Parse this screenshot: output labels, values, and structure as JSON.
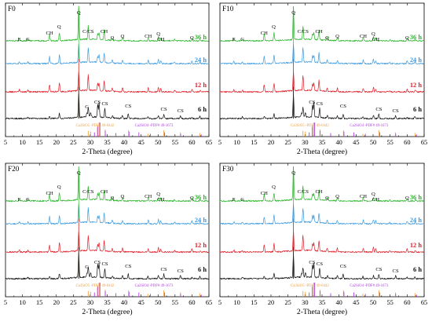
{
  "chart_data": [
    {
      "type": "line",
      "title": "F0",
      "xlabel": "2-Theta (degree)",
      "ylabel": "",
      "xlim": [
        5,
        65
      ],
      "x_ticks": [
        "5",
        "10",
        "15",
        "20",
        "25",
        "30",
        "35",
        "40",
        "45",
        "50",
        "55",
        "60",
        "65"
      ],
      "series": [
        {
          "name": "36 h",
          "color": "#2db52d"
        },
        {
          "name": "24 h",
          "color": "#3d9be0"
        },
        {
          "name": "12 h",
          "color": "#e0202a"
        },
        {
          "name": "6 h",
          "color": "#111111"
        }
      ],
      "phase_labels": [
        {
          "text": "E",
          "x": 9.1,
          "series": "36 h"
        },
        {
          "text": "G",
          "x": 11.6,
          "series": "36 h"
        },
        {
          "text": "CH",
          "x": 18.0,
          "series": "36 h"
        },
        {
          "text": "Q",
          "x": 20.8,
          "series": "36 h"
        },
        {
          "text": "Q",
          "x": 26.6,
          "series": "36 h"
        },
        {
          "text": "C/CS",
          "x": 29.4,
          "series": "36 h"
        },
        {
          "text": "CH",
          "x": 34.1,
          "series": "36 h"
        },
        {
          "text": "Q",
          "x": 36.5,
          "series": "36 h"
        },
        {
          "text": "Q",
          "x": 39.5,
          "series": "36 h"
        },
        {
          "text": "CH",
          "x": 47.1,
          "series": "36 h"
        },
        {
          "text": "Q",
          "x": 50.1,
          "series": "36 h"
        },
        {
          "text": "CH",
          "x": 50.8,
          "series": "36 h"
        },
        {
          "text": "Q",
          "x": 60.0,
          "series": "36 h"
        },
        {
          "text": "G",
          "x": 29.0,
          "series": "6 h"
        },
        {
          "text": "CS",
          "x": 32.1,
          "series": "6 h"
        },
        {
          "text": "CS",
          "x": 34.3,
          "series": "6 h"
        },
        {
          "text": "CS",
          "x": 41.2,
          "series": "6 h"
        },
        {
          "text": "CS",
          "x": 51.7,
          "series": "6 h"
        },
        {
          "text": "CS",
          "x": 56.6,
          "series": "6 h"
        }
      ],
      "reference_patterns": [
        {
          "name": "Ca3SiO5 -PDF# 49-0442",
          "color": "#f0a040",
          "peaks": [
            29.4,
            30.1,
            32.2,
            32.6,
            34.4,
            41.3,
            47.0,
            51.7,
            56.6,
            62.3
          ],
          "intensities": [
            0.4,
            0.35,
            0.8,
            1.0,
            0.5,
            0.45,
            0.2,
            0.45,
            0.3,
            0.25
          ]
        },
        {
          "name": "Ca2SiO4 -PDF# 49-1673",
          "color": "#b040e0",
          "peaks": [
            31.1,
            32.0,
            32.7,
            34.3,
            37.4,
            41.3,
            44.2,
            47.6,
            51.8,
            56.5,
            62.6
          ],
          "intensities": [
            0.3,
            0.7,
            1.0,
            0.4,
            0.25,
            0.35,
            0.3,
            0.2,
            0.3,
            0.2,
            0.15
          ]
        }
      ]
    },
    {
      "type": "line",
      "title": "F10",
      "xlabel": "2-Theta (degree)",
      "ylabel": "",
      "xlim": [
        5,
        65
      ],
      "x_ticks": [
        "5",
        "10",
        "15",
        "20",
        "25",
        "30",
        "35",
        "40",
        "45",
        "50",
        "55",
        "60",
        "65"
      ],
      "series": [
        {
          "name": "36 h",
          "color": "#2db52d"
        },
        {
          "name": "24 h",
          "color": "#3d9be0"
        },
        {
          "name": "12 h",
          "color": "#e0202a"
        },
        {
          "name": "6 h",
          "color": "#111111"
        }
      ],
      "phase_labels": [
        {
          "text": "E",
          "x": 9.1,
          "series": "36 h"
        },
        {
          "text": "G",
          "x": 11.6,
          "series": "36 h"
        },
        {
          "text": "CH",
          "x": 18.0,
          "series": "36 h"
        },
        {
          "text": "Q",
          "x": 20.8,
          "series": "36 h"
        },
        {
          "text": "Q",
          "x": 26.6,
          "series": "36 h"
        },
        {
          "text": "C/CS",
          "x": 29.4,
          "series": "36 h"
        },
        {
          "text": "CH",
          "x": 34.1,
          "series": "36 h"
        },
        {
          "text": "Q",
          "x": 36.5,
          "series": "36 h"
        },
        {
          "text": "Q",
          "x": 39.5,
          "series": "36 h"
        },
        {
          "text": "CH",
          "x": 47.1,
          "series": "36 h"
        },
        {
          "text": "Q",
          "x": 50.1,
          "series": "36 h"
        },
        {
          "text": "CH",
          "x": 50.8,
          "series": "36 h"
        },
        {
          "text": "Q",
          "x": 60.0,
          "series": "36 h"
        },
        {
          "text": "CS",
          "x": 32.1,
          "series": "6 h"
        },
        {
          "text": "CS",
          "x": 34.3,
          "series": "6 h"
        },
        {
          "text": "CS",
          "x": 41.2,
          "series": "6 h"
        },
        {
          "text": "CS",
          "x": 51.7,
          "series": "6 h"
        },
        {
          "text": "CS",
          "x": 56.6,
          "series": "6 h"
        }
      ],
      "reference_patterns": [
        {
          "name": "Ca3SiO5 -PDF# 49-0442",
          "color": "#f0a040",
          "peaks": [
            29.4,
            30.1,
            32.2,
            32.6,
            34.4,
            41.3,
            47.0,
            51.7,
            56.6,
            62.3
          ],
          "intensities": [
            0.4,
            0.35,
            0.8,
            1.0,
            0.5,
            0.45,
            0.2,
            0.45,
            0.3,
            0.25
          ]
        },
        {
          "name": "Ca2SiO4 -PDF# 49-1673",
          "color": "#b040e0",
          "peaks": [
            31.1,
            32.0,
            32.7,
            34.3,
            37.4,
            41.3,
            44.2,
            47.6,
            51.8,
            56.5,
            62.6
          ],
          "intensities": [
            0.3,
            0.7,
            1.0,
            0.4,
            0.25,
            0.35,
            0.3,
            0.2,
            0.3,
            0.2,
            0.15
          ]
        }
      ]
    },
    {
      "type": "line",
      "title": "F20",
      "xlabel": "2-Theta (degree)",
      "ylabel": "",
      "xlim": [
        5,
        65
      ],
      "x_ticks": [
        "5",
        "10",
        "15",
        "20",
        "25",
        "30",
        "35",
        "40",
        "45",
        "50",
        "55",
        "60",
        "65"
      ],
      "series": [
        {
          "name": "36 h",
          "color": "#2db52d"
        },
        {
          "name": "24 h",
          "color": "#3d9be0"
        },
        {
          "name": "12 h",
          "color": "#e0202a"
        },
        {
          "name": "6 h",
          "color": "#111111"
        }
      ],
      "phase_labels": [
        {
          "text": "E",
          "x": 9.1,
          "series": "36 h"
        },
        {
          "text": "G",
          "x": 11.6,
          "series": "36 h"
        },
        {
          "text": "CH",
          "x": 18.0,
          "series": "36 h"
        },
        {
          "text": "Q",
          "x": 20.8,
          "series": "36 h"
        },
        {
          "text": "Q",
          "x": 26.6,
          "series": "36 h"
        },
        {
          "text": "C/CS",
          "x": 29.4,
          "series": "36 h"
        },
        {
          "text": "CH",
          "x": 34.1,
          "series": "36 h"
        },
        {
          "text": "Q",
          "x": 36.5,
          "series": "36 h"
        },
        {
          "text": "Q",
          "x": 39.5,
          "series": "36 h"
        },
        {
          "text": "CH",
          "x": 47.1,
          "series": "36 h"
        },
        {
          "text": "Q",
          "x": 50.1,
          "series": "36 h"
        },
        {
          "text": "CH",
          "x": 50.8,
          "series": "36 h"
        },
        {
          "text": "Q",
          "x": 60.0,
          "series": "36 h"
        },
        {
          "text": "G",
          "x": 29.0,
          "series": "6 h"
        },
        {
          "text": "CS",
          "x": 32.1,
          "series": "6 h"
        },
        {
          "text": "CS",
          "x": 34.3,
          "series": "6 h"
        },
        {
          "text": "CS",
          "x": 41.2,
          "series": "6 h"
        },
        {
          "text": "CS",
          "x": 51.7,
          "series": "6 h"
        },
        {
          "text": "CS",
          "x": 56.6,
          "series": "6 h"
        }
      ],
      "reference_patterns": [
        {
          "name": "Ca3SiO5 -PDF# 49-0442",
          "color": "#f0a040",
          "peaks": [
            29.4,
            30.1,
            32.2,
            32.6,
            34.4,
            41.3,
            47.0,
            51.7,
            56.6,
            62.3
          ],
          "intensities": [
            0.4,
            0.35,
            0.8,
            1.0,
            0.5,
            0.45,
            0.2,
            0.45,
            0.3,
            0.25
          ]
        },
        {
          "name": "Ca2SiO4 -PDF# 49-1673",
          "color": "#b040e0",
          "peaks": [
            31.1,
            32.0,
            32.7,
            34.3,
            37.4,
            41.3,
            44.2,
            47.6,
            51.8,
            56.5,
            62.6
          ],
          "intensities": [
            0.3,
            0.7,
            1.0,
            0.4,
            0.25,
            0.35,
            0.3,
            0.2,
            0.3,
            0.2,
            0.15
          ]
        }
      ]
    },
    {
      "type": "line",
      "title": "F30",
      "xlabel": "2-Theta (degree)",
      "ylabel": "",
      "xlim": [
        5,
        65
      ],
      "x_ticks": [
        "5",
        "10",
        "15",
        "20",
        "25",
        "30",
        "35",
        "40",
        "45",
        "50",
        "55",
        "60",
        "65"
      ],
      "series": [
        {
          "name": "36 h",
          "color": "#2db52d"
        },
        {
          "name": "24 h",
          "color": "#3d9be0"
        },
        {
          "name": "12 h",
          "color": "#e0202a"
        },
        {
          "name": "6 h",
          "color": "#111111"
        }
      ],
      "phase_labels": [
        {
          "text": "E",
          "x": 9.1,
          "series": "36 h"
        },
        {
          "text": "G",
          "x": 11.6,
          "series": "36 h"
        },
        {
          "text": "CH",
          "x": 18.0,
          "series": "36 h"
        },
        {
          "text": "Q",
          "x": 20.8,
          "series": "36 h"
        },
        {
          "text": "Q",
          "x": 26.6,
          "series": "36 h"
        },
        {
          "text": "C/CS",
          "x": 29.4,
          "series": "36 h"
        },
        {
          "text": "CH",
          "x": 34.1,
          "series": "36 h"
        },
        {
          "text": "Q",
          "x": 36.5,
          "series": "36 h"
        },
        {
          "text": "Q",
          "x": 39.5,
          "series": "36 h"
        },
        {
          "text": "CH",
          "x": 47.1,
          "series": "36 h"
        },
        {
          "text": "Q",
          "x": 50.1,
          "series": "36 h"
        },
        {
          "text": "CH",
          "x": 50.8,
          "series": "36 h"
        },
        {
          "text": "Q",
          "x": 60.0,
          "series": "36 h"
        },
        {
          "text": "CS",
          "x": 32.1,
          "series": "6 h"
        },
        {
          "text": "CS",
          "x": 34.3,
          "series": "6 h"
        },
        {
          "text": "CS",
          "x": 41.2,
          "series": "6 h"
        },
        {
          "text": "CS",
          "x": 51.7,
          "series": "6 h"
        },
        {
          "text": "CS",
          "x": 56.6,
          "series": "6 h"
        }
      ],
      "reference_patterns": [
        {
          "name": "Ca3SiO5 -PDF# 49-0442",
          "color": "#f0a040",
          "peaks": [
            29.4,
            30.1,
            32.2,
            32.6,
            34.4,
            41.3,
            47.0,
            51.7,
            56.6,
            62.3
          ],
          "intensities": [
            0.4,
            0.35,
            0.8,
            1.0,
            0.5,
            0.45,
            0.2,
            0.45,
            0.3,
            0.25
          ]
        },
        {
          "name": "Ca2SiO4 -PDF# 49-1673",
          "color": "#b040e0",
          "peaks": [
            31.1,
            32.0,
            32.7,
            34.3,
            37.4,
            41.3,
            44.2,
            47.6,
            51.8,
            56.5,
            62.6
          ],
          "intensities": [
            0.3,
            0.7,
            1.0,
            0.4,
            0.25,
            0.35,
            0.3,
            0.2,
            0.3,
            0.2,
            0.15
          ]
        }
      ]
    }
  ]
}
